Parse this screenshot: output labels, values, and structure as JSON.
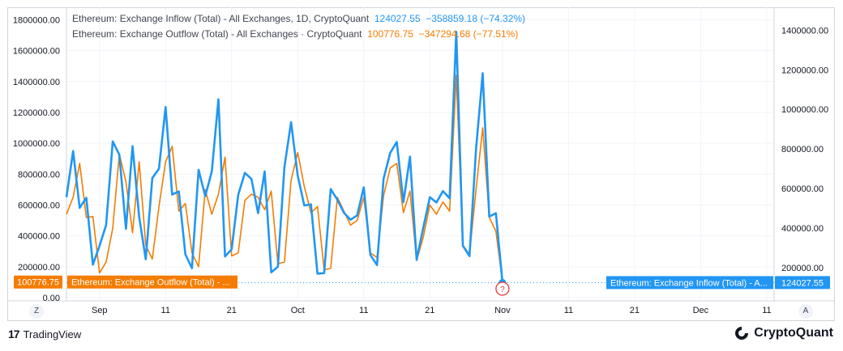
{
  "chart_data": {
    "type": "line",
    "legend": {
      "inflow_label": "Ethereum: Exchange Inflow (Total) - All Exchanges, 1D, CryptoQuant",
      "inflow_value": "124027.55",
      "inflow_change": "−358859.18 (−74.32%)",
      "outflow_label": "Ethereum: Exchange Outflow (Total) - All Exchanges · CryptoQuant",
      "outflow_value": "100776.75",
      "outflow_change": "−347294.68 (−77.51%)"
    },
    "left_axis": {
      "range": [
        0,
        1860000
      ],
      "ticks": [
        "1800000.00",
        "1600000.00",
        "1400000.00",
        "1200000.00",
        "1000000.00",
        "800000.00",
        "600000.00",
        "400000.00",
        "200000.00",
        "0.00"
      ]
    },
    "right_axis": {
      "range": [
        48000,
        1500000
      ],
      "ticks": [
        "1400000.00",
        "1200000.00",
        "1000000.00",
        "800000.00",
        "600000.00",
        "400000.00",
        "200000.00"
      ]
    },
    "x_axis": {
      "ticks": [
        "Sep",
        "11",
        "21",
        "Oct",
        "11",
        "21",
        "Nov",
        "11",
        "21",
        "Dec",
        "11"
      ]
    },
    "series": [
      {
        "name": "Ethereum: Exchange Inflow (Total) - All Exchanges",
        "axis": "right",
        "color": "#2196f3",
        "values": [
          556000,
          789000,
          502000,
          553000,
          215000,
          310000,
          415000,
          838000,
          771000,
          396000,
          814000,
          456000,
          242000,
          653000,
          700000,
          1012000,
          569000,
          585000,
          267000,
          197000,
          694000,
          561000,
          686000,
          1051000,
          256000,
          293000,
          568000,
          679000,
          648000,
          475000,
          686000,
          176000,
          204000,
          708000,
          935000,
          665000,
          514000,
          520000,
          169000,
          172000,
          597000,
          543000,
          477000,
          442000,
          464000,
          606000,
          264000,
          213000,
          649000,
          780000,
          835000,
          531000,
          761000,
          239000,
          400000,
          556000,
          529000,
          587000,
          550000,
          1392000,
          311000,
          258000,
          800000,
          1183000,
          458000,
          475000,
          124000
        ],
        "last_label": "Ethereum: Exchange Inflow (Total) - A...",
        "last_value": "124027.55"
      },
      {
        "name": "Ethereum: Exchange Outflow (Total) - All Exchanges",
        "axis": "left",
        "color": "#f57c00",
        "values": [
          540000,
          650000,
          870000,
          520000,
          525000,
          160000,
          230000,
          450000,
          930000,
          750000,
          420000,
          880000,
          340000,
          250000,
          590000,
          880000,
          980000,
          560000,
          610000,
          290000,
          200000,
          700000,
          540000,
          670000,
          910000,
          270000,
          290000,
          630000,
          670000,
          650000,
          570000,
          690000,
          220000,
          230000,
          760000,
          940000,
          720000,
          550000,
          590000,
          180000,
          190000,
          650000,
          560000,
          470000,
          500000,
          650000,
          290000,
          260000,
          660000,
          840000,
          870000,
          550000,
          690000,
          240000,
          390000,
          600000,
          540000,
          620000,
          560000,
          1440000,
          340000,
          280000,
          700000,
          1100000,
          520000,
          430000,
          101000
        ],
        "last_label": "Ethereum: Exchange Outflow (Total) - ...",
        "last_value": "100776.75"
      }
    ],
    "bottom_buttons": {
      "left": "Z",
      "right": "A"
    },
    "marker": "?"
  },
  "footer": {
    "left_brand": "TradingView",
    "right_brand": "CryptoQuant"
  }
}
